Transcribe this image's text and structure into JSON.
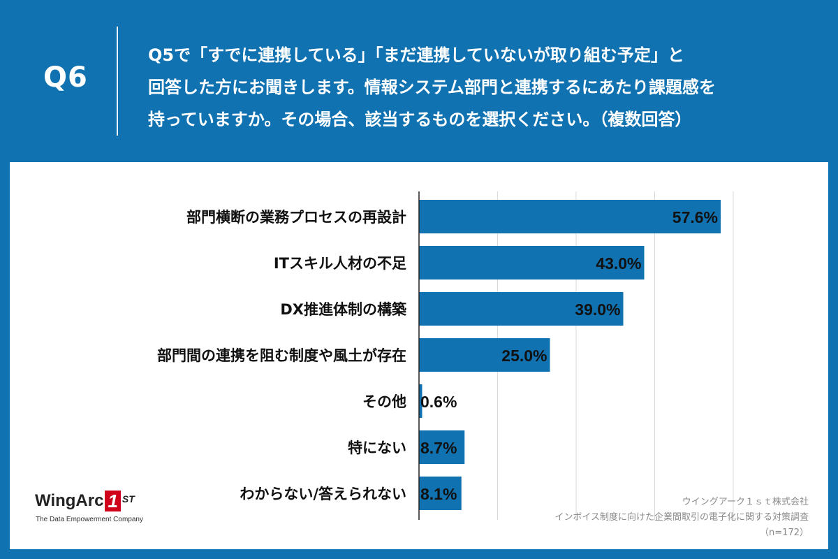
{
  "header": {
    "question_number": "Q6",
    "question_lines": [
      "Q5で「すでに連携している」「まだ連携していないが取り組む予定」と",
      "回答した方にお聞きします。情報システム部門と連携するにあたり課題感を",
      "持っていますか。その場合、該当するものを選択ください。（複数回答）"
    ]
  },
  "colors": {
    "background": "#1172b1",
    "bar": "#1172b1",
    "panel": "#ffffff",
    "gridline": "#d9d9d9"
  },
  "chart_data": {
    "type": "bar",
    "orientation": "horizontal",
    "categories": [
      "部門横断の業務プロセスの再設計",
      "ITスキル人材の不足",
      "DX推進体制の構築",
      "部門間の連携を阻む制度や風土が存在",
      "その他",
      "特にない",
      "わからない/答えられない"
    ],
    "values": [
      57.6,
      43.0,
      39.0,
      25.0,
      0.6,
      8.7,
      8.1
    ],
    "value_labels": [
      "57.6%",
      "43.0%",
      "39.0%",
      "25.0%",
      "0.6%",
      "8.7%",
      "8.1%"
    ],
    "xlim": [
      0,
      70
    ],
    "gridline_values": [
      0,
      15,
      30,
      45,
      60
    ],
    "grid": true,
    "title": "",
    "xlabel": "",
    "ylabel": ""
  },
  "logo": {
    "brand_text": "WingArc",
    "brand_mark": "1",
    "brand_suffix": "ST",
    "tagline": "The Data Empowerment Company"
  },
  "source": {
    "company": "ウイングアーク１ｓｔ株式会社",
    "survey": "インボイス制度に向けた企業間取引の電子化に関する対策調査",
    "sample": "（n=172）"
  }
}
